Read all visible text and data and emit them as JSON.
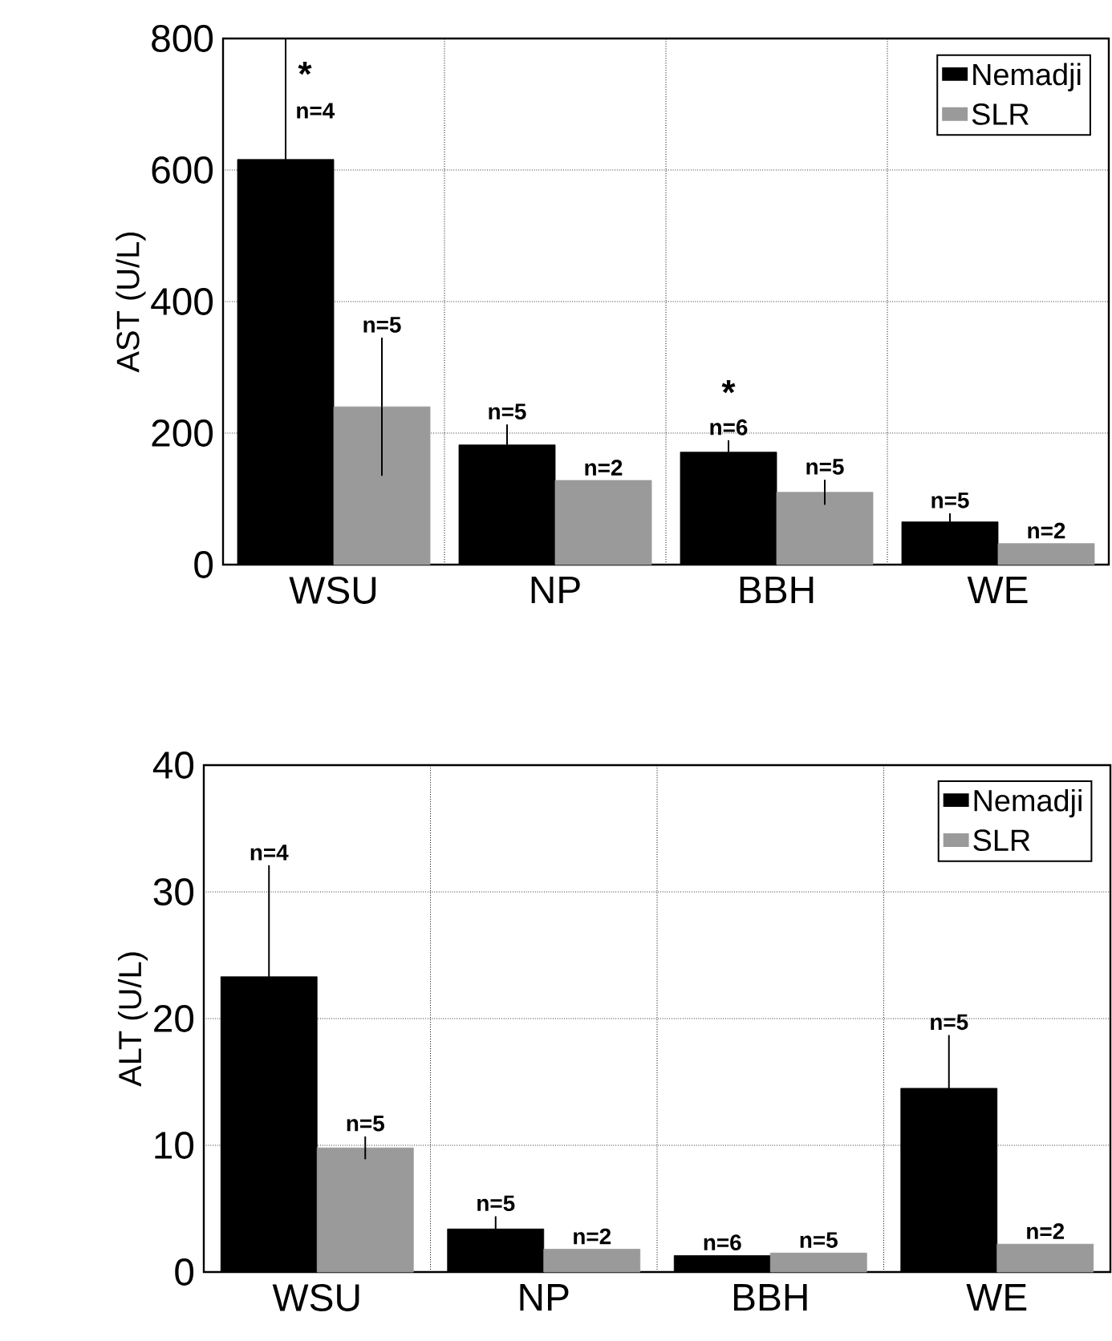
{
  "chart_data": [
    {
      "type": "bar",
      "ylabel": "AST (U/L)",
      "categories": [
        "WSU",
        "NP",
        "BBH",
        "WE"
      ],
      "series": [
        {
          "name": "Nemadji",
          "color": "#000000",
          "values": [
            616,
            182,
            171,
            65
          ],
          "errors": [
            184,
            31,
            18,
            13
          ]
        },
        {
          "name": "SLR",
          "color": "#9a9a9a",
          "values": [
            240,
            128,
            110,
            32
          ],
          "errors": [
            105,
            null,
            19,
            null
          ]
        }
      ],
      "ylim": [
        0,
        800
      ],
      "yticks": [
        0,
        200,
        400,
        600,
        800
      ],
      "grid": true,
      "legend": "top right",
      "annotations": [
        "n=4",
        "n=5",
        "n=6",
        "n=5",
        "n=5",
        "n=2",
        "n=5",
        "n=2",
        "*",
        "*"
      ]
    },
    {
      "type": "bar",
      "ylabel": "ALT (U/L)",
      "categories": [
        "WSU",
        "NP",
        "BBH",
        "WE"
      ],
      "series": [
        {
          "name": "Nemadji",
          "color": "#000000",
          "values": [
            23.3,
            3.4,
            1.3,
            14.5
          ],
          "errors": [
            8.8,
            1.0,
            null,
            4.2
          ]
        },
        {
          "name": "SLR",
          "color": "#9a9a9a",
          "values": [
            9.8,
            1.8,
            1.5,
            2.2
          ],
          "errors": [
            0.9,
            null,
            null,
            null
          ]
        }
      ],
      "ylim": [
        0,
        40
      ],
      "yticks": [
        0,
        10,
        20,
        30,
        40
      ],
      "grid": true,
      "legend": "top right",
      "annotations": [
        "n=4",
        "n=5",
        "n=6",
        "n=5",
        "n=5",
        "n=2",
        "n=5",
        "n=2"
      ]
    }
  ]
}
